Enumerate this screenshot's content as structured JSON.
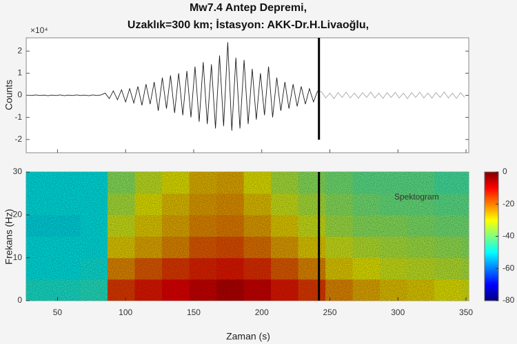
{
  "chart_data": [
    {
      "type": "line",
      "title": "Mw7.4 Antep Depremi,",
      "subtitle": "Uzaklık=300 km; İstasyon: AKK-Dr.H.Livaoğlu,",
      "ylabel": "Counts",
      "y_multiplier": "×10⁴",
      "xlim": [
        27,
        352
      ],
      "ylim": [
        -2.6,
        2.6
      ],
      "yticks": [
        -2,
        -1,
        0,
        1,
        2
      ],
      "marker_x": 242,
      "x": [
        28,
        31,
        34,
        37,
        40,
        43,
        46,
        49,
        52,
        55,
        58,
        61,
        64,
        67,
        70,
        73,
        76,
        79,
        82,
        85,
        88,
        91,
        94,
        97,
        100,
        103,
        106,
        109,
        112,
        115,
        118,
        121,
        124,
        127,
        130,
        133,
        136,
        139,
        142,
        145,
        148,
        151,
        154,
        157,
        160,
        163,
        166,
        169,
        172,
        175,
        178,
        181,
        184,
        187,
        190,
        193,
        196,
        199,
        202,
        205,
        208,
        211,
        214,
        217,
        220,
        223,
        226,
        229,
        232,
        235,
        238,
        241,
        244,
        247,
        250,
        253,
        256,
        259,
        262,
        265,
        268,
        271,
        274,
        277,
        280,
        283,
        286,
        289,
        292,
        295,
        298,
        301,
        304,
        307,
        310,
        313,
        316,
        319,
        322,
        325,
        328,
        331,
        334,
        337,
        340,
        343,
        346,
        349
      ],
      "series": [
        {
          "color": "#1a1a1a",
          "values": [
            0.01,
            -0.01,
            0.02,
            -0.01,
            0.01,
            -0.02,
            0.01,
            -0.01,
            0.02,
            -0.02,
            0.01,
            -0.01,
            0.02,
            -0.01,
            0.01,
            -0.02,
            0.02,
            -0.01,
            0.02,
            0.1,
            -0.15,
            0.2,
            -0.2,
            0.25,
            -0.3,
            0.3,
            -0.35,
            0.4,
            -0.45,
            0.5,
            -0.4,
            0.6,
            -0.7,
            0.8,
            -0.6,
            0.9,
            -0.8,
            1.0,
            -0.9,
            1.1,
            -1.0,
            1.3,
            -1.2,
            1.5,
            -1.3,
            1.4,
            -1.5,
            1.8,
            -1.4,
            2.4,
            -1.6,
            1.7,
            -1.5,
            1.6,
            -1.3,
            1.2,
            -1.1,
            1.0,
            -0.9,
            1.3,
            -1.0,
            0.8,
            -0.7,
            0.6,
            -0.6,
            0.5,
            -0.5,
            0.4,
            -0.4,
            0.3,
            -0.3,
            0.2,
            null,
            null,
            null,
            null,
            null,
            null,
            null,
            null,
            null,
            null,
            null,
            null,
            null,
            null,
            null,
            null,
            null,
            null,
            null,
            null,
            null,
            null,
            null,
            null,
            null,
            null,
            null,
            null,
            null,
            null,
            null,
            null,
            null,
            null,
            null,
            null
          ]
        },
        {
          "color": "#a8a8a8",
          "values": [
            null,
            null,
            null,
            null,
            null,
            null,
            null,
            null,
            null,
            null,
            null,
            null,
            null,
            null,
            null,
            null,
            null,
            null,
            null,
            null,
            null,
            null,
            null,
            null,
            null,
            null,
            null,
            null,
            null,
            null,
            null,
            null,
            null,
            null,
            null,
            null,
            null,
            null,
            null,
            null,
            null,
            null,
            null,
            null,
            null,
            null,
            null,
            null,
            null,
            null,
            null,
            null,
            null,
            null,
            null,
            null,
            null,
            null,
            null,
            null,
            null,
            null,
            null,
            null,
            null,
            null,
            null,
            null,
            null,
            null,
            null,
            0.2,
            0.15,
            -0.12,
            0.1,
            -0.15,
            0.12,
            -0.1,
            0.14,
            -0.12,
            0.1,
            -0.13,
            0.12,
            -0.1,
            0.15,
            -0.12,
            0.1,
            -0.14,
            0.12,
            -0.1,
            0.13,
            -0.12,
            0.1,
            -0.15,
            0.12,
            -0.1,
            0.14,
            -0.12,
            0.1,
            -0.13,
            0.12,
            -0.1,
            0.15,
            -0.12,
            0.1,
            -0.14,
            0.12,
            -0.1
          ]
        }
      ]
    },
    {
      "type": "heatmap",
      "annotation": "Spektogram",
      "xlabel": "Zaman (s)",
      "ylabel": "Frekans (Hz)",
      "colormap": "jet",
      "xlim": [
        27,
        352
      ],
      "xticks": [
        50,
        100,
        150,
        200,
        250,
        300,
        350
      ],
      "ylim": [
        0,
        30
      ],
      "yticks": [
        0,
        10,
        20,
        30
      ],
      "marker_x": 242,
      "clim": [
        -80,
        0
      ],
      "cticks": [
        0,
        -20,
        -40,
        -60,
        -80
      ],
      "x": [
        37,
        57,
        77,
        97,
        117,
        137,
        157,
        177,
        197,
        217,
        237,
        257,
        277,
        297,
        317,
        337,
        357
      ],
      "y": [
        2.5,
        7.5,
        12.5,
        17.5,
        22.5,
        27.5
      ],
      "z": [
        [
          -48,
          -50,
          -50,
          -51,
          -50,
          -50
        ],
        [
          -48,
          -50,
          -50,
          -51,
          -50,
          -50
        ],
        [
          -47,
          -49,
          -50,
          -50,
          -50,
          -50
        ],
        [
          -15,
          -22,
          -28,
          -32,
          -35,
          -38
        ],
        [
          -12,
          -18,
          -25,
          -28,
          -30,
          -33
        ],
        [
          -10,
          -15,
          -22,
          -25,
          -27,
          -30
        ],
        [
          -8,
          -13,
          -18,
          -22,
          -24,
          -26
        ],
        [
          -6,
          -12,
          -17,
          -21,
          -23,
          -25
        ],
        [
          -8,
          -14,
          -20,
          -24,
          -27,
          -30
        ],
        [
          -12,
          -18,
          -24,
          -28,
          -32,
          -35
        ],
        [
          -15,
          -22,
          -28,
          -32,
          -35,
          -38
        ],
        [
          -22,
          -28,
          -32,
          -36,
          -38,
          -40
        ],
        [
          -25,
          -30,
          -34,
          -38,
          -40,
          -42
        ],
        [
          -27,
          -32,
          -35,
          -38,
          -41,
          -42
        ],
        [
          -28,
          -33,
          -36,
          -39,
          -41,
          -42
        ],
        [
          -30,
          -34,
          -37,
          -40,
          -42,
          -44
        ],
        [
          -31,
          -35,
          -38,
          -40,
          -42,
          -44
        ]
      ]
    }
  ]
}
